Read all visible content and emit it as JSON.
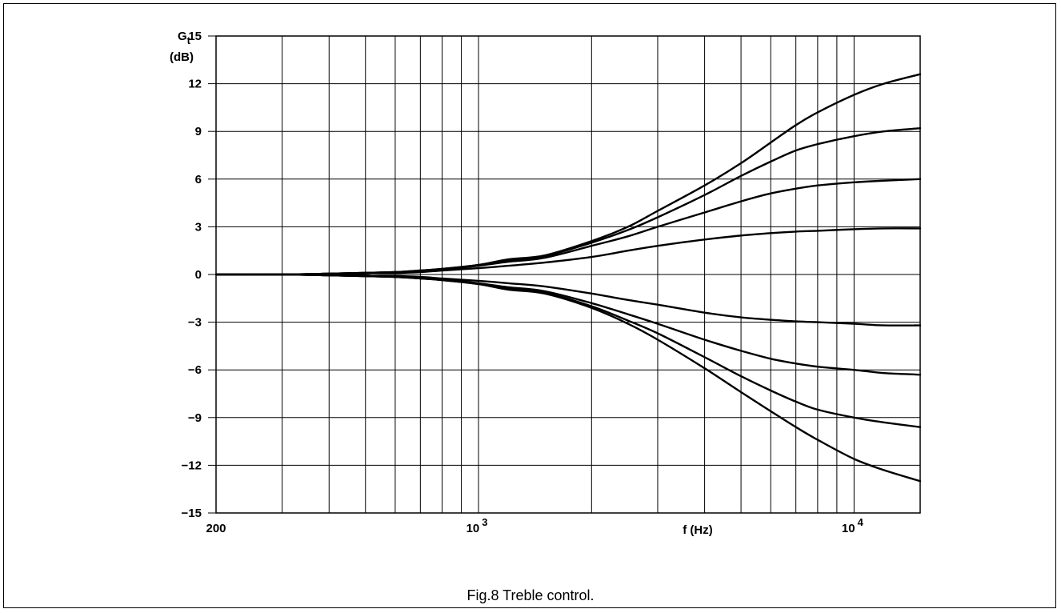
{
  "chart_data": {
    "type": "line",
    "title": "",
    "caption": "Fig.8 Treble control.",
    "x_scale": "log",
    "xlim": [
      200,
      15000
    ],
    "ylim": [
      -15,
      15
    ],
    "xlabel": "f  (Hz)",
    "ylabel_main": "G",
    "ylabel_sub": "t",
    "ylabel_unit": "(dB)",
    "grid": true,
    "legend": "none",
    "x_tick_labels": [
      {
        "value": 200,
        "label": "200",
        "exp": ""
      },
      {
        "value": 1000,
        "label": "10",
        "exp": "3"
      },
      {
        "value": 10000,
        "label": "10",
        "exp": "4"
      }
    ],
    "y_ticks": [
      15,
      12,
      9,
      6,
      3,
      0,
      -3,
      -6,
      -9,
      -12,
      -15
    ],
    "y_tick_labels": [
      "15",
      "12",
      "9",
      "6",
      "3",
      "0",
      "−3",
      "−6",
      "−9",
      "−12",
      "−15"
    ],
    "x_gridlines": [
      200,
      300,
      400,
      500,
      600,
      700,
      800,
      900,
      1000,
      2000,
      3000,
      4000,
      5000,
      6000,
      7000,
      8000,
      9000,
      10000,
      15000
    ],
    "x": [
      200,
      300,
      400,
      500,
      600,
      700,
      800,
      1000,
      1200,
      1500,
      2000,
      2500,
      3000,
      4000,
      5000,
      6000,
      7000,
      8000,
      10000,
      12000,
      15000
    ],
    "series": [
      {
        "values": [
          0,
          0,
          0.05,
          0.1,
          0.15,
          0.25,
          0.35,
          0.6,
          0.95,
          1.2,
          2.1,
          3.0,
          4.0,
          5.6,
          7.0,
          8.3,
          9.4,
          10.2,
          11.3,
          12.0,
          12.6
        ]
      },
      {
        "values": [
          0,
          0,
          0.05,
          0.1,
          0.15,
          0.25,
          0.35,
          0.6,
          0.9,
          1.15,
          2.0,
          2.8,
          3.6,
          5.0,
          6.2,
          7.1,
          7.8,
          8.2,
          8.7,
          9.0,
          9.2
        ]
      },
      {
        "values": [
          0,
          0,
          0.05,
          0.1,
          0.15,
          0.2,
          0.3,
          0.55,
          0.8,
          1.05,
          1.8,
          2.4,
          3.0,
          3.9,
          4.6,
          5.1,
          5.4,
          5.6,
          5.8,
          5.9,
          6.0
        ]
      },
      {
        "values": [
          0,
          0,
          0.05,
          0.1,
          0.1,
          0.15,
          0.25,
          0.4,
          0.55,
          0.75,
          1.1,
          1.5,
          1.8,
          2.2,
          2.45,
          2.6,
          2.7,
          2.75,
          2.85,
          2.9,
          2.9
        ]
      },
      {
        "values": [
          0,
          0,
          -0.05,
          -0.1,
          -0.1,
          -0.15,
          -0.25,
          -0.4,
          -0.55,
          -0.75,
          -1.2,
          -1.6,
          -1.9,
          -2.4,
          -2.7,
          -2.85,
          -2.95,
          -3.0,
          -3.1,
          -3.2,
          -3.2
        ]
      },
      {
        "values": [
          0,
          0,
          -0.05,
          -0.1,
          -0.15,
          -0.2,
          -0.3,
          -0.55,
          -0.8,
          -1.05,
          -1.8,
          -2.5,
          -3.1,
          -4.1,
          -4.8,
          -5.3,
          -5.6,
          -5.8,
          -6.0,
          -6.2,
          -6.3
        ]
      },
      {
        "values": [
          0,
          0,
          -0.05,
          -0.1,
          -0.15,
          -0.25,
          -0.35,
          -0.6,
          -0.9,
          -1.15,
          -2.0,
          -2.9,
          -3.7,
          -5.2,
          -6.4,
          -7.3,
          -8.0,
          -8.5,
          -9.0,
          -9.3,
          -9.6
        ]
      },
      {
        "values": [
          0,
          0,
          -0.05,
          -0.1,
          -0.15,
          -0.25,
          -0.35,
          -0.6,
          -0.95,
          -1.2,
          -2.1,
          -3.1,
          -4.1,
          -5.9,
          -7.4,
          -8.6,
          -9.6,
          -10.4,
          -11.6,
          -12.3,
          -13.0
        ]
      }
    ],
    "colors": {
      "line": "#000000",
      "grid": "#000000",
      "background": "#ffffff"
    }
  }
}
